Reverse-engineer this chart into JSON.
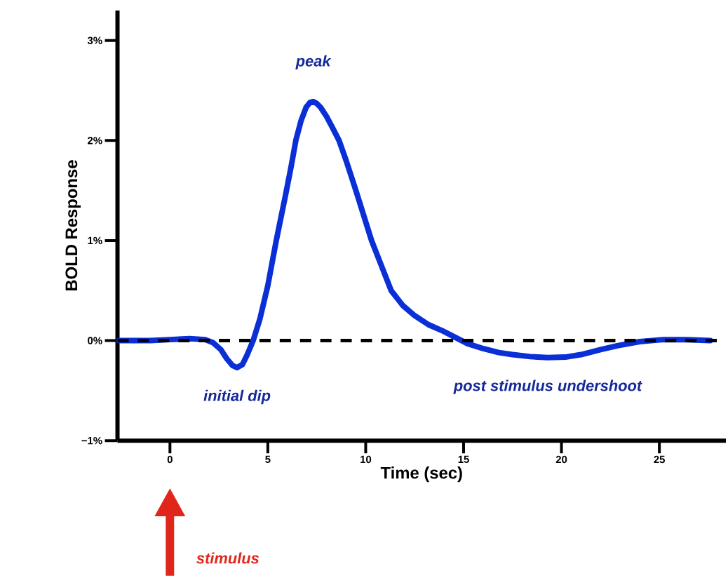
{
  "chart_data": {
    "type": "line",
    "xlabel": "Time (sec)",
    "ylabel": "BOLD Response",
    "series": [
      {
        "color": "#0a2fd6",
        "x": [
          -2.6,
          -1,
          0,
          1,
          1.8,
          2.2,
          2.6,
          2.9,
          3.2,
          3.43,
          3.7,
          3.95,
          4.25,
          4.6,
          5,
          5.43,
          5.9,
          6.2,
          6.43,
          6.7,
          6.95,
          7.15,
          7.32,
          7.5,
          7.7,
          8,
          8.3,
          8.64,
          9,
          9.5,
          10.3,
          10.8,
          11.3,
          11.9,
          12.5,
          13.2,
          13.9,
          14.5,
          15.2,
          16,
          16.8,
          17.5,
          18.4,
          19.3,
          20.2,
          21,
          22,
          22.9,
          24,
          25.2,
          26.4,
          27.6
        ],
        "values": [
          0,
          0,
          0.01,
          0.02,
          0.01,
          -0.02,
          -0.09,
          -0.18,
          -0.25,
          -0.27,
          -0.24,
          -0.14,
          0,
          0.22,
          0.55,
          1,
          1.45,
          1.75,
          2,
          2.2,
          2.33,
          2.38,
          2.39,
          2.37,
          2.33,
          2.24,
          2.13,
          2,
          1.8,
          1.5,
          1,
          0.75,
          0.5,
          0.35,
          0.25,
          0.16,
          0.1,
          0.04,
          -0.03,
          -0.08,
          -0.12,
          -0.14,
          -0.16,
          -0.17,
          -0.165,
          -0.14,
          -0.09,
          -0.05,
          -0.01,
          0.01,
          0.01,
          0
        ]
      }
    ],
    "xlim": [
      -2.68,
      28.4
    ],
    "ylim": [
      -1,
      3.3
    ],
    "xticks": [
      0,
      5,
      10,
      15,
      20,
      25
    ],
    "yticks": [
      {
        "value": -1,
        "label": "−1%"
      },
      {
        "value": 0,
        "label": "0%"
      },
      {
        "value": 1,
        "label": "1%"
      },
      {
        "value": 2,
        "label": "2%"
      },
      {
        "value": 3,
        "label": "3%"
      }
    ],
    "ref_lines": [
      {
        "axis": "y",
        "value": 0,
        "color": "#000000",
        "line_style": "dashed"
      }
    ],
    "line_style": "solid",
    "annotations": [
      {
        "text": "peak",
        "x": 7.32,
        "y": 2.39
      },
      {
        "text": "initial dip",
        "x": 3.43,
        "y": -0.27
      },
      {
        "text": "post stimulus undershoot",
        "x": 19.3,
        "y": -0.17
      },
      "stimulus"
    ]
  }
}
